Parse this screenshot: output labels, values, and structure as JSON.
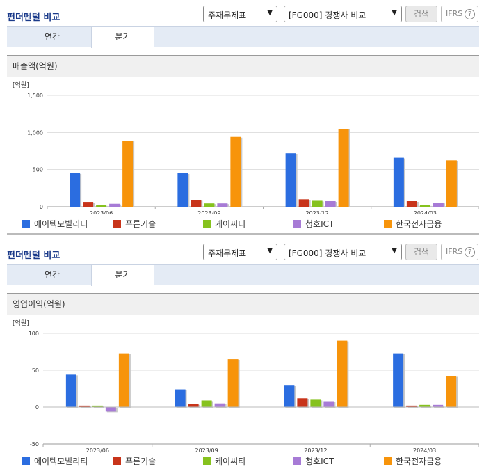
{
  "controls": {
    "title": "펀더멘털 비교",
    "select_statement": "주재무제표",
    "select_group": "[FG000] 경쟁사 비교",
    "search_label": "검색",
    "ifrs_label": "IFRS",
    "ifrs_help": "?"
  },
  "tabs": [
    "연간",
    "분기"
  ],
  "active_tab": "분기",
  "colors": {
    "에이텍모빌리티": "#2b6de0",
    "푸른기술": "#c8341a",
    "케이씨티": "#86c21e",
    "청호ICT": "#a77bd6",
    "한국전자금융": "#f7940b"
  },
  "chart_data": [
    {
      "type": "bar",
      "title": "매출액(억원)",
      "unit_label": "[억원]",
      "categories": [
        "2023/06",
        "2023/09",
        "2023/12",
        "2024/03"
      ],
      "ylim": [
        0,
        1500
      ],
      "yticks": [
        0,
        500,
        1000,
        1500
      ],
      "ytick_labels": [
        "0",
        "500",
        "1,000",
        "1,500"
      ],
      "grid": true,
      "legend_position": "bottom",
      "series": [
        {
          "name": "에이텍모빌리티",
          "values": [
            450,
            450,
            720,
            660
          ]
        },
        {
          "name": "푸른기술",
          "values": [
            65,
            90,
            100,
            75
          ]
        },
        {
          "name": "케이씨티",
          "values": [
            20,
            45,
            80,
            20
          ]
        },
        {
          "name": "청호ICT",
          "values": [
            40,
            45,
            75,
            55
          ]
        },
        {
          "name": "한국전자금융",
          "values": [
            890,
            940,
            1050,
            625
          ]
        }
      ]
    },
    {
      "type": "bar",
      "title": "영업이익(억원)",
      "unit_label": "[억원]",
      "categories": [
        "2023/06",
        "2023/09",
        "2023/12",
        "2024/03"
      ],
      "ylim": [
        -50,
        100
      ],
      "yticks": [
        -50,
        0,
        50,
        100
      ],
      "ytick_labels": [
        "-50",
        "0",
        "50",
        "100"
      ],
      "grid": true,
      "legend_position": "bottom",
      "series": [
        {
          "name": "에이텍모빌리티",
          "values": [
            44,
            24,
            30,
            73
          ]
        },
        {
          "name": "푸른기술",
          "values": [
            2,
            4,
            12,
            2
          ]
        },
        {
          "name": "케이씨티",
          "values": [
            2,
            9,
            10,
            3
          ]
        },
        {
          "name": "청호ICT",
          "values": [
            -6,
            5,
            8,
            3
          ]
        },
        {
          "name": "한국전자금융",
          "values": [
            73,
            65,
            90,
            42
          ]
        }
      ]
    }
  ]
}
